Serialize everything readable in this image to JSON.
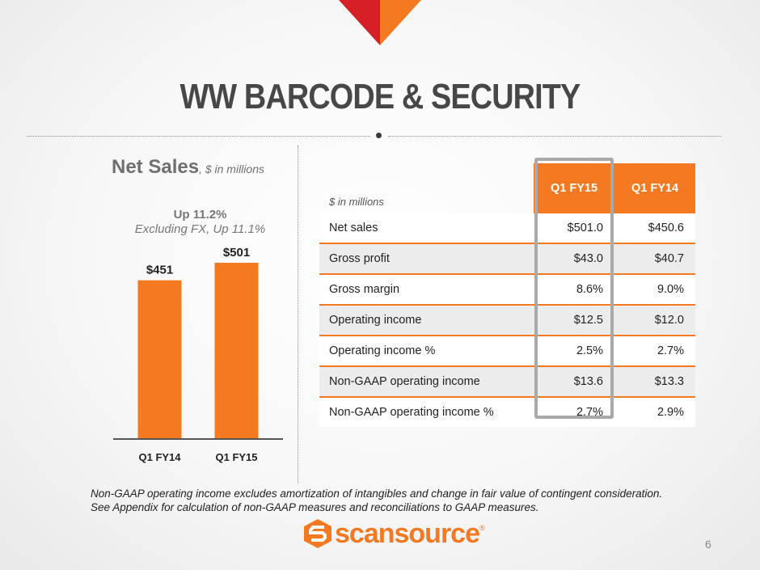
{
  "slide": {
    "title": "WW BARCODE & SECURITY",
    "page_number": "6"
  },
  "net_sales": {
    "heading": "Net Sales",
    "heading_suffix": ", $ in millions",
    "growth_line1": "Up 11.2%",
    "growth_line2": "Excluding FX, Up 11.1%"
  },
  "chart_data": {
    "type": "bar",
    "categories": [
      "Q1 FY14",
      "Q1 FY15"
    ],
    "values": [
      451,
      501
    ],
    "data_labels": [
      "$451",
      "$501"
    ],
    "title": "",
    "xlabel": "",
    "ylabel": "",
    "ylim": [
      0,
      501
    ],
    "grid": false,
    "bar_color": "#f47920"
  },
  "table": {
    "unit_label": "$ in millions",
    "columns": [
      "Q1 FY15",
      "Q1 FY14"
    ],
    "rows": [
      {
        "label": "Net sales",
        "q1fy15": "$501.0",
        "q1fy14": "$450.6"
      },
      {
        "label": "Gross profit",
        "q1fy15": "$43.0",
        "q1fy14": "$40.7"
      },
      {
        "label": "Gross margin",
        "q1fy15": "8.6%",
        "q1fy14": "9.0%"
      },
      {
        "label": "Operating income",
        "q1fy15": "$12.5",
        "q1fy14": "$12.0"
      },
      {
        "label": "Operating income %",
        "q1fy15": "2.5%",
        "q1fy14": "2.7%"
      },
      {
        "label": "Non-GAAP operating income",
        "q1fy15": "$13.6",
        "q1fy14": "$13.3"
      },
      {
        "label": "Non-GAAP operating income %",
        "q1fy15": "2.7%",
        "q1fy14": "2.9%"
      }
    ]
  },
  "footnote": {
    "line1": "Non-GAAP operating income excludes amortization of intangibles and change in fair value of contingent consideration.",
    "line2": "See Appendix for calculation of non-GAAP measures and reconciliations to GAAP measures."
  },
  "brand": {
    "name": "scansource",
    "registered": "®",
    "accent_color": "#f47920",
    "secondary_color": "#d71f26"
  }
}
